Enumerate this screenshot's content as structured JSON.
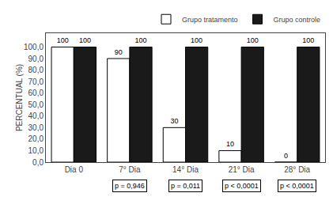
{
  "chart_data": {
    "type": "bar",
    "categories": [
      "Dia 0",
      "7° Dia",
      "14° Dia",
      "21° Dia",
      "28° Dia"
    ],
    "series": [
      {
        "name": "Grupo tratamento",
        "color": "#ffffff",
        "values": [
          100,
          90,
          30,
          10,
          0
        ]
      },
      {
        "name": "Grupo controle",
        "color": "#1a1a1a",
        "values": [
          100,
          100,
          100,
          100,
          100
        ]
      }
    ],
    "ylabel": "PERCENTUAL (%)",
    "ylim": [
      0,
      112
    ],
    "yticks": [
      {
        "value": 0,
        "label": "0,0"
      },
      {
        "value": 10,
        "label": "10,0"
      },
      {
        "value": 20,
        "label": "20,0"
      },
      {
        "value": 30,
        "label": "30,0"
      },
      {
        "value": 40,
        "label": "40,0"
      },
      {
        "value": 50,
        "label": "50,0"
      },
      {
        "value": 60,
        "label": "60,0"
      },
      {
        "value": 70,
        "label": "70,0"
      },
      {
        "value": 80,
        "label": "80,0"
      },
      {
        "value": 90,
        "label": "90,0"
      },
      {
        "value": 100,
        "label": "100,0"
      }
    ],
    "grid": false,
    "legend": "upper right",
    "data_labels": true,
    "annotations": [
      {
        "category": "7° Dia",
        "text": "p = 0,946"
      },
      {
        "category": "14° Dia",
        "text": "p = 0,011"
      },
      {
        "category": "21° Dia",
        "text": "p < 0,0001"
      },
      {
        "category": "28° Dia",
        "text": "p < 0,0001"
      }
    ]
  }
}
